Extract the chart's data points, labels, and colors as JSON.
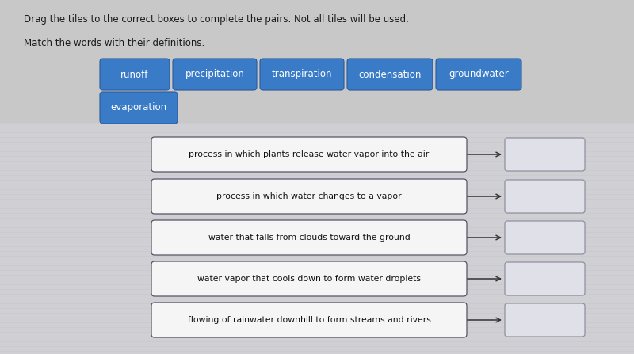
{
  "bg_color": "#c8c8c8",
  "bg_lower_color": "#d4d4d8",
  "title_line1": "Drag the tiles to the correct boxes to complete the pairs. Not all tiles will be used.",
  "title_line2": "Match the words with their definitions.",
  "tile_color": "#3a7bc8",
  "tile_text_color": "#ffffff",
  "tile_row1": [
    "runoff",
    "precipitation",
    "transpiration",
    "condensation",
    "groundwater"
  ],
  "tile_row2": [
    "evaporation"
  ],
  "definitions": [
    "process in which plants release water vapor into the air",
    "process in which water changes to a vapor",
    "water that falls from clouds toward the ground",
    "water vapor that cools down to form water droplets",
    "flowing of rainwater downhill to form streams and rivers"
  ],
  "def_box_color": "#f5f5f5",
  "def_box_border": "#555566",
  "answer_box_color": "#e0e0e8",
  "answer_box_border": "#888899",
  "font_size_title": 8.5,
  "font_size_tile": 8.5,
  "font_size_def": 7.8
}
